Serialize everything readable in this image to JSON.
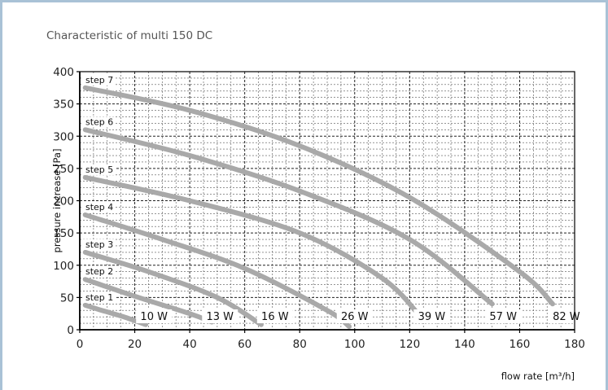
{
  "chart_data": {
    "type": "line",
    "title": "Characteristic of multi 150 DC",
    "xlabel": "flow rate [m³/h]",
    "ylabel": "pressure increase [Pa]",
    "xlim": [
      0,
      180
    ],
    "ylim": [
      0,
      400
    ],
    "xticks": [
      0,
      20,
      40,
      60,
      80,
      100,
      120,
      140,
      160,
      180
    ],
    "yticks": [
      0,
      50,
      100,
      150,
      200,
      250,
      300,
      350,
      400
    ],
    "grid": true,
    "line_color": "#a9a9a9",
    "series": [
      {
        "name": "step 1",
        "power": "10 W",
        "x": [
          2,
          8,
          16,
          24
        ],
        "y": [
          38,
          30,
          20,
          8
        ],
        "power_x": 27
      },
      {
        "name": "step 2",
        "power": "13 W",
        "x": [
          2,
          20,
          40,
          48
        ],
        "y": [
          78,
          52,
          25,
          12
        ],
        "power_x": 51
      },
      {
        "name": "step 3",
        "power": "16 W",
        "x": [
          2,
          25,
          50,
          66
        ],
        "y": [
          120,
          90,
          50,
          8
        ],
        "power_x": 71
      },
      {
        "name": "step 4",
        "power": "26 W",
        "x": [
          2,
          30,
          60,
          90,
          98
        ],
        "y": [
          178,
          140,
          95,
          30,
          5
        ],
        "power_x": 100
      },
      {
        "name": "step 5",
        "power": "39 W",
        "x": [
          2,
          40,
          80,
          110,
          124
        ],
        "y": [
          236,
          200,
          150,
          80,
          20
        ],
        "power_x": 128
      },
      {
        "name": "step 6",
        "power": "57 W",
        "x": [
          2,
          40,
          80,
          120,
          150
        ],
        "y": [
          310,
          270,
          215,
          140,
          40
        ],
        "power_x": 154
      },
      {
        "name": "step 7",
        "power": "82 W",
        "x": [
          2,
          40,
          80,
          120,
          160,
          172
        ],
        "y": [
          375,
          340,
          285,
          205,
          90,
          40
        ],
        "power_x": 177
      }
    ]
  }
}
